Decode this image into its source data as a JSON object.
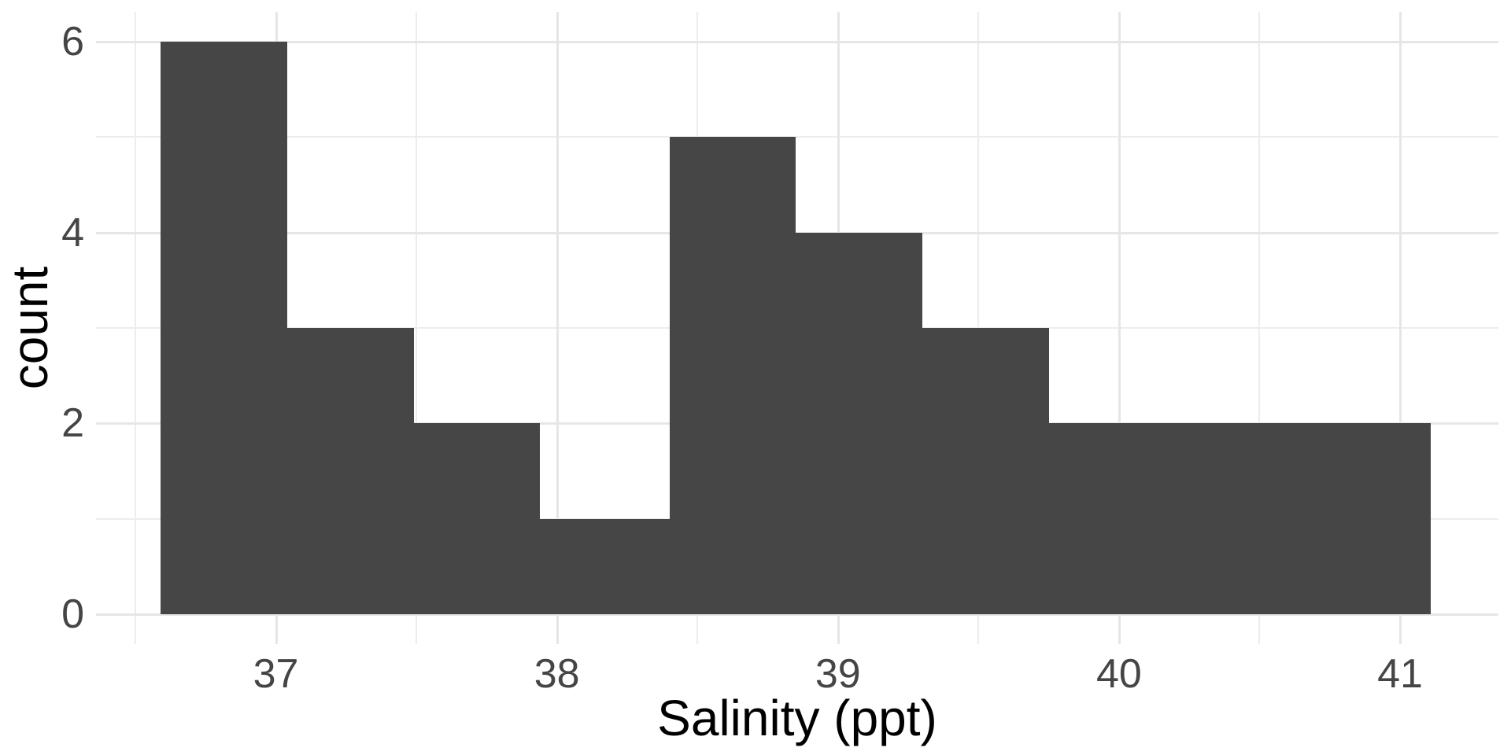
{
  "figure": {
    "background_color": "#ffffff",
    "panel_background_color": "#ffffff"
  },
  "chart_data": {
    "type": "bar",
    "subtype": "histogram",
    "title": "",
    "xlabel": "Salinity (ppt)",
    "ylabel": "count",
    "bin_edges": [
      36.59,
      37.04,
      37.49,
      37.94,
      38.4,
      38.85,
      39.3,
      39.75,
      40.2,
      40.66,
      41.11
    ],
    "counts": [
      6,
      3,
      2,
      1,
      5,
      4,
      3,
      2,
      2,
      2
    ],
    "x_ticks": [
      37,
      38,
      39,
      40,
      41
    ],
    "y_ticks": [
      0,
      2,
      4,
      6
    ],
    "x_minor_gridlines": [
      36.5,
      37.5,
      38.5,
      39.5,
      40.5
    ],
    "y_minor_gridlines": [
      1,
      3,
      5
    ],
    "xlim": [
      36.36,
      41.35
    ],
    "ylim": [
      -0.31,
      6.31
    ],
    "grid": "on",
    "legend": "none",
    "bar_color": "#464646",
    "major_gridline_color": "#e6e6e6",
    "minor_gridline_color": "#ededed",
    "tick_label_color": "#454545",
    "axis_title_color": "#000000"
  }
}
